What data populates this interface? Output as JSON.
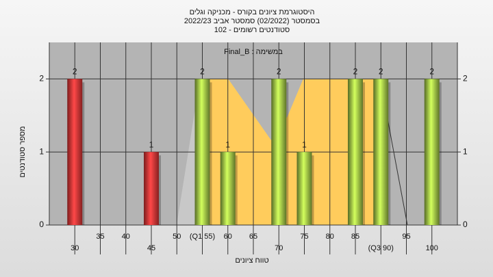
{
  "chart_data": {
    "type": "bar",
    "title": "היסטוגרמת ציונים בקורס - מכניקה וגלים",
    "subtitle": "בסמסטר (02/2022) סמסטר אביב 2022/23",
    "subtitle2": "סטודנטים רשומים - 102",
    "annotation": "במשימה : Final_B",
    "x_label": "טווח ציונים",
    "y_label": "מספר סטודנטים",
    "x": [
      30,
      45,
      55,
      60,
      70,
      75,
      85,
      90,
      100
    ],
    "values": [
      2,
      1,
      2,
      1,
      2,
      1,
      2,
      2,
      2
    ],
    "colors": [
      "#e03535",
      "#e03535",
      "#9cc245",
      "#9cc245",
      "#9cc245",
      "#9cc245",
      "#9cc245",
      "#9cc245",
      "#9cc245"
    ],
    "xlim": [
      25,
      105
    ],
    "xticks": [
      30,
      35,
      40,
      45,
      50,
      {
        "value": 55,
        "label": "(Q1 55)"
      },
      60,
      65,
      70,
      75,
      80,
      85,
      {
        "value": 90,
        "label": "(Q3 90)"
      },
      95,
      100
    ],
    "ylim": [
      0,
      2.5
    ],
    "yticks": [
      0,
      1,
      2
    ],
    "grid": true
  }
}
